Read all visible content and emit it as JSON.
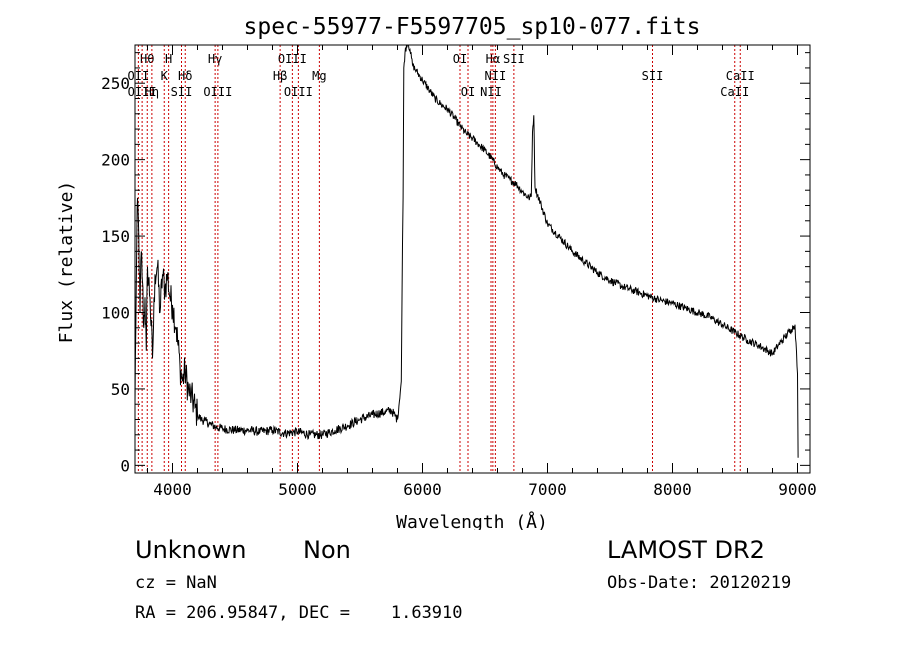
{
  "chart_data": {
    "type": "line",
    "title": "spec-55977-F5597705_sp10-077.fits",
    "xlabel": "Wavelength (Å)",
    "ylabel": "Flux (relative)",
    "xlim": [
      3700,
      9100
    ],
    "ylim": [
      -5,
      275
    ],
    "x_ticks": [
      4000,
      5000,
      6000,
      7000,
      8000,
      9000
    ],
    "y_ticks": [
      0,
      50,
      100,
      150,
      200,
      250
    ],
    "x_tick_labels": [
      "4000",
      "5000",
      "6000",
      "7000",
      "8000",
      "9000"
    ],
    "y_tick_labels": [
      "0",
      "50",
      "100",
      "150",
      "200",
      "250"
    ],
    "grid": false,
    "line_color": "#000000",
    "marker_color": "#cc0000",
    "series": [
      {
        "x": [
          3700,
          3710,
          3720,
          3730,
          3740,
          3750,
          3760,
          3770,
          3780,
          3790,
          3800,
          3820,
          3840,
          3860,
          3880,
          3900,
          3920,
          3940,
          3960,
          3980,
          4000,
          4030,
          4060,
          4080,
          4100,
          4130,
          4150,
          4180,
          4200,
          4230,
          4260,
          4300,
          4350,
          4400,
          4500,
          4600,
          4700,
          4800,
          4900,
          5000,
          5100,
          5200,
          5300,
          5400,
          5500,
          5600,
          5700,
          5750,
          5800,
          5830,
          5840,
          5845,
          5850,
          5860,
          5880,
          5900,
          5920,
          5950,
          6000,
          6050,
          6100,
          6150,
          6200,
          6250,
          6300,
          6350,
          6400,
          6450,
          6500,
          6550,
          6600,
          6650,
          6700,
          6750,
          6800,
          6850,
          6870,
          6880,
          6890,
          6900,
          6950,
          7000,
          7100,
          7200,
          7300,
          7400,
          7500,
          7600,
          7700,
          7800,
          7900,
          8000,
          8100,
          8200,
          8300,
          8400,
          8500,
          8600,
          8700,
          8800,
          8850,
          8900,
          8950,
          8980,
          9000,
          9005
        ],
        "y": [
          40,
          120,
          175,
          150,
          100,
          140,
          120,
          90,
          110,
          75,
          130,
          110,
          70,
          125,
          130,
          100,
          125,
          115,
          125,
          110,
          105,
          90,
          65,
          55,
          62,
          48,
          45,
          38,
          33,
          30,
          29,
          27,
          25,
          24,
          23,
          23,
          22,
          23,
          21,
          22,
          20,
          20,
          23,
          26,
          30,
          33,
          35,
          36,
          30,
          55,
          145,
          175,
          260,
          270,
          278,
          272,
          262,
          258,
          252,
          246,
          240,
          236,
          233,
          228,
          222,
          217,
          214,
          210,
          206,
          201,
          195,
          190,
          187,
          184,
          179,
          175,
          176,
          218,
          229,
          182,
          170,
          158,
          149,
          140,
          133,
          126,
          121,
          117,
          114,
          111,
          108,
          106,
          103,
          100,
          97,
          92,
          87,
          82,
          78,
          73,
          79,
          84,
          89,
          92,
          60,
          5
        ]
      }
    ],
    "lines": [
      {
        "label": "Hθ",
        "wavelength": 3798,
        "row": 1
      },
      {
        "label": "OII",
        "wavelength": 3727,
        "row": 2
      },
      {
        "label": "OIII",
        "wavelength": 3757,
        "row": 3
      },
      {
        "label": "Hη",
        "wavelength": 3835,
        "row": 3
      },
      {
        "label": "H",
        "wavelength": 3969,
        "row": 1
      },
      {
        "label": "K",
        "wavelength": 3934,
        "row": 2
      },
      {
        "label": "Hδ",
        "wavelength": 4102,
        "row": 2
      },
      {
        "label": "SII",
        "wavelength": 4072,
        "row": 3
      },
      {
        "label": "Hγ",
        "wavelength": 4341,
        "row": 1
      },
      {
        "label": "OIII",
        "wavelength": 4363,
        "row": 3
      },
      {
        "label": "OIII",
        "wavelength": 4959,
        "row": 1
      },
      {
        "label": "Hβ",
        "wavelength": 4861,
        "row": 2
      },
      {
        "label": "Mg",
        "wavelength": 5175,
        "row": 2
      },
      {
        "label": "OIII",
        "wavelength": 5007,
        "row": 3
      },
      {
        "label": "OI",
        "wavelength": 6300,
        "row": 1
      },
      {
        "label": "OI",
        "wavelength": 6364,
        "row": 3
      },
      {
        "label": "Hα",
        "wavelength": 6563,
        "row": 1
      },
      {
        "label": "SII",
        "wavelength": 6731,
        "row": 1
      },
      {
        "label": "NII",
        "wavelength": 6583,
        "row": 2
      },
      {
        "label": "NII",
        "wavelength": 6548,
        "row": 3
      },
      {
        "label": "SII",
        "wavelength": 7840,
        "row": 2
      },
      {
        "label": "CaII",
        "wavelength": 8542,
        "row": 2
      },
      {
        "label": "CaII",
        "wavelength": 8498,
        "row": 3
      }
    ]
  },
  "info": {
    "class_label": "Unknown",
    "subclass_label": "Non",
    "survey_label": "LAMOST DR2",
    "cz_text": "cz = NaN",
    "obs_date_text": "Obs-Date: 20120219",
    "coords_text": "RA = 206.95847, DEC =    1.63910"
  }
}
